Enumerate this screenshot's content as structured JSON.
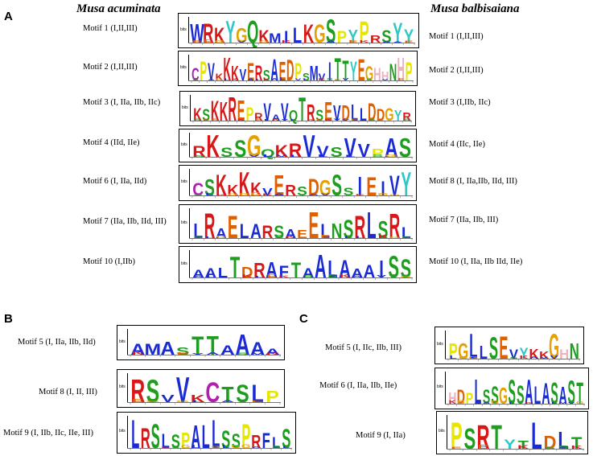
{
  "panels": {
    "A": "A",
    "B": "B",
    "C": "C"
  },
  "species": {
    "left": "Musa acuminata",
    "right": "Musa balbisaiana"
  },
  "panelA": {
    "left": [
      {
        "label": "Motif 1 (I,II,III)",
        "seq": "WRKYGQKMILKGSPYPRSYY"
      },
      {
        "label": "Motif 2 (I,II,III)",
        "seq": "CPVKKKVERSAEDPSMVITTYEGHHNHP"
      },
      {
        "label": "Motif 3 (I, IIa, IIb, IIc)",
        "seq": "KSKKREPRVAVQTRSEVDLLDDGYR"
      },
      {
        "label": "Motif 4 (IId, IIe)",
        "seq": "RKSSGQKRVVSVVPAS"
      },
      {
        "label": "Motif 6 (I, IIa, IId)",
        "seq": "CSKKKKVERSDGSSIEIVY"
      },
      {
        "label": "Motif 7 (IIa, IIb, IId, III)",
        "seq": "LRAELARSAEELNSRLSRL"
      },
      {
        "label": "Motif 10 (I,IIb)",
        "seq": "AALTDRAFTAALAAAISS"
      }
    ],
    "right": [
      {
        "label": "Motif 1 (I,II,III)"
      },
      {
        "label": "Motif 2 (I,II,III)"
      },
      {
        "label": "Motif 3 (I,IIb, IIc)"
      },
      {
        "label": "Motif 4 (IIc, IIe)"
      },
      {
        "label": "Motif 8 (I, IIa,IIb, IId, III)"
      },
      {
        "label": "Motif 7 (IIa, IIb, III)"
      },
      {
        "label": "Motif 10 (I, IIa, IIb IId, IIe)"
      }
    ]
  },
  "panelB": [
    {
      "label": "Motif 5 (I, IIa, IIb, IId)",
      "seq": "AMASTTAAAA"
    },
    {
      "label": "Motif 8 (I, II, III)",
      "seq": "RSVVKCTSLP"
    },
    {
      "label": "Motif 9 (I, IIb, IIc, IIe, III)",
      "seq": "LRSLSPALLSSPRFLS"
    }
  ],
  "panelC": [
    {
      "label": "Motif 5 (I, IIc, IIb, III)",
      "seq": "PGLLSEVYKKGHN"
    },
    {
      "label": "Motif 6 (I, IIa, IIb, IIe)",
      "seq": "HDPLSSGSSALASAST"
    },
    {
      "label": "Motif 9 (I, IIa)",
      "seq": "PSRTYTLDLT"
    }
  ],
  "axis_unit": "bits",
  "colors": {
    "hydrophobic": "#1a2bd6",
    "positive": "#d81818",
    "negative": "#e06000",
    "polar": "#1e9e1e",
    "glycine": "#e8a000",
    "proline": "#e6e600",
    "aromatic": "#2ec8c8",
    "histidine": "#f0b0c0",
    "other": "#b020b0"
  }
}
